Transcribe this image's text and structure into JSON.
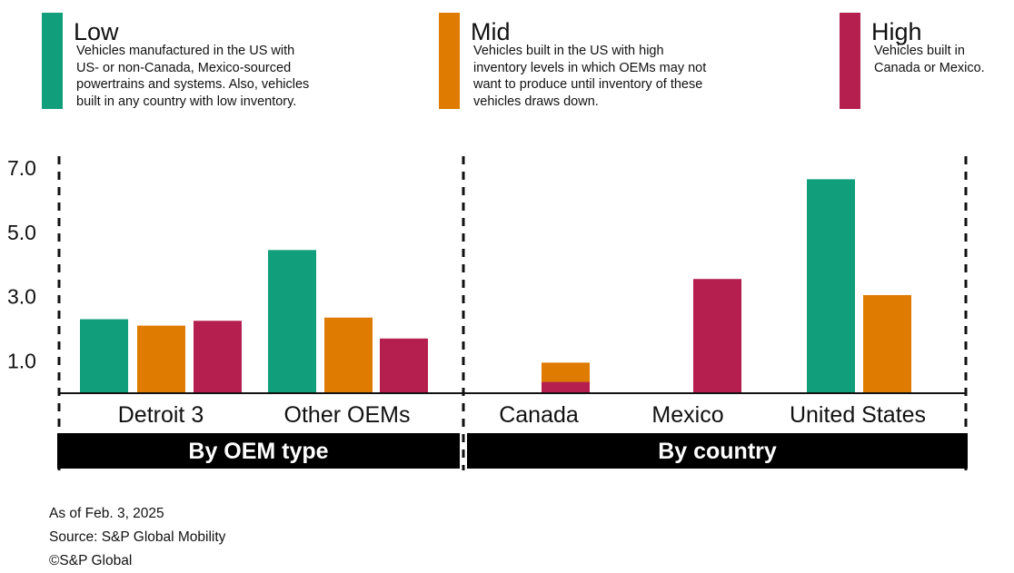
{
  "legend": [
    {
      "key": "low",
      "title": "Low",
      "color": "#119e7a",
      "lines": [
        "Vehicles manufactured in the US with",
        "US- or non-Canada, Mexico-sourced",
        "powertrains and systems. Also, vehicles",
        "built in any country with low inventory."
      ]
    },
    {
      "key": "mid",
      "title": "Mid",
      "color": "#de7b00",
      "lines": [
        "Vehicles built in the US with high",
        "inventory levels in which OEMs may not",
        "want to produce until inventory of these",
        "vehicles draws down."
      ]
    },
    {
      "key": "high",
      "title": "High",
      "color": "#b51f4f",
      "lines": [
        "Vehicles built in",
        "Canada or Mexico."
      ]
    }
  ],
  "chart_data": {
    "type": "bar",
    "title": "",
    "xlabel": "",
    "ylabel": "",
    "ylim": [
      0,
      7.5
    ],
    "yticks": [
      1.0,
      3.0,
      5.0,
      7.0
    ],
    "ytick_labels": [
      "1.0",
      "3.0",
      "5.0",
      "7.0"
    ],
    "grid": false,
    "categories": [
      "Detroit 3",
      "Other OEMs",
      "Canada",
      "Mexico",
      "United States"
    ],
    "groups": [
      {
        "label": "By OEM type",
        "categories": [
          "Detroit 3",
          "Other OEMs"
        ]
      },
      {
        "label": "By country",
        "categories": [
          "Canada",
          "Mexico",
          "United States"
        ]
      }
    ],
    "series": [
      {
        "name": "Low",
        "color": "#119e7a",
        "values": [
          2.3,
          4.45,
          null,
          null,
          6.65
        ]
      },
      {
        "name": "Mid",
        "color": "#de7b00",
        "values": [
          2.1,
          2.35,
          0.95,
          0.45,
          3.05
        ]
      },
      {
        "name": "High",
        "color": "#b51f4f",
        "values": [
          2.25,
          1.7,
          0.35,
          3.55,
          null
        ]
      }
    ]
  },
  "footer": {
    "date": "As of Feb. 3, 2025",
    "source": "Source: S&P Global Mobility",
    "copyright": "©S&P Global"
  }
}
